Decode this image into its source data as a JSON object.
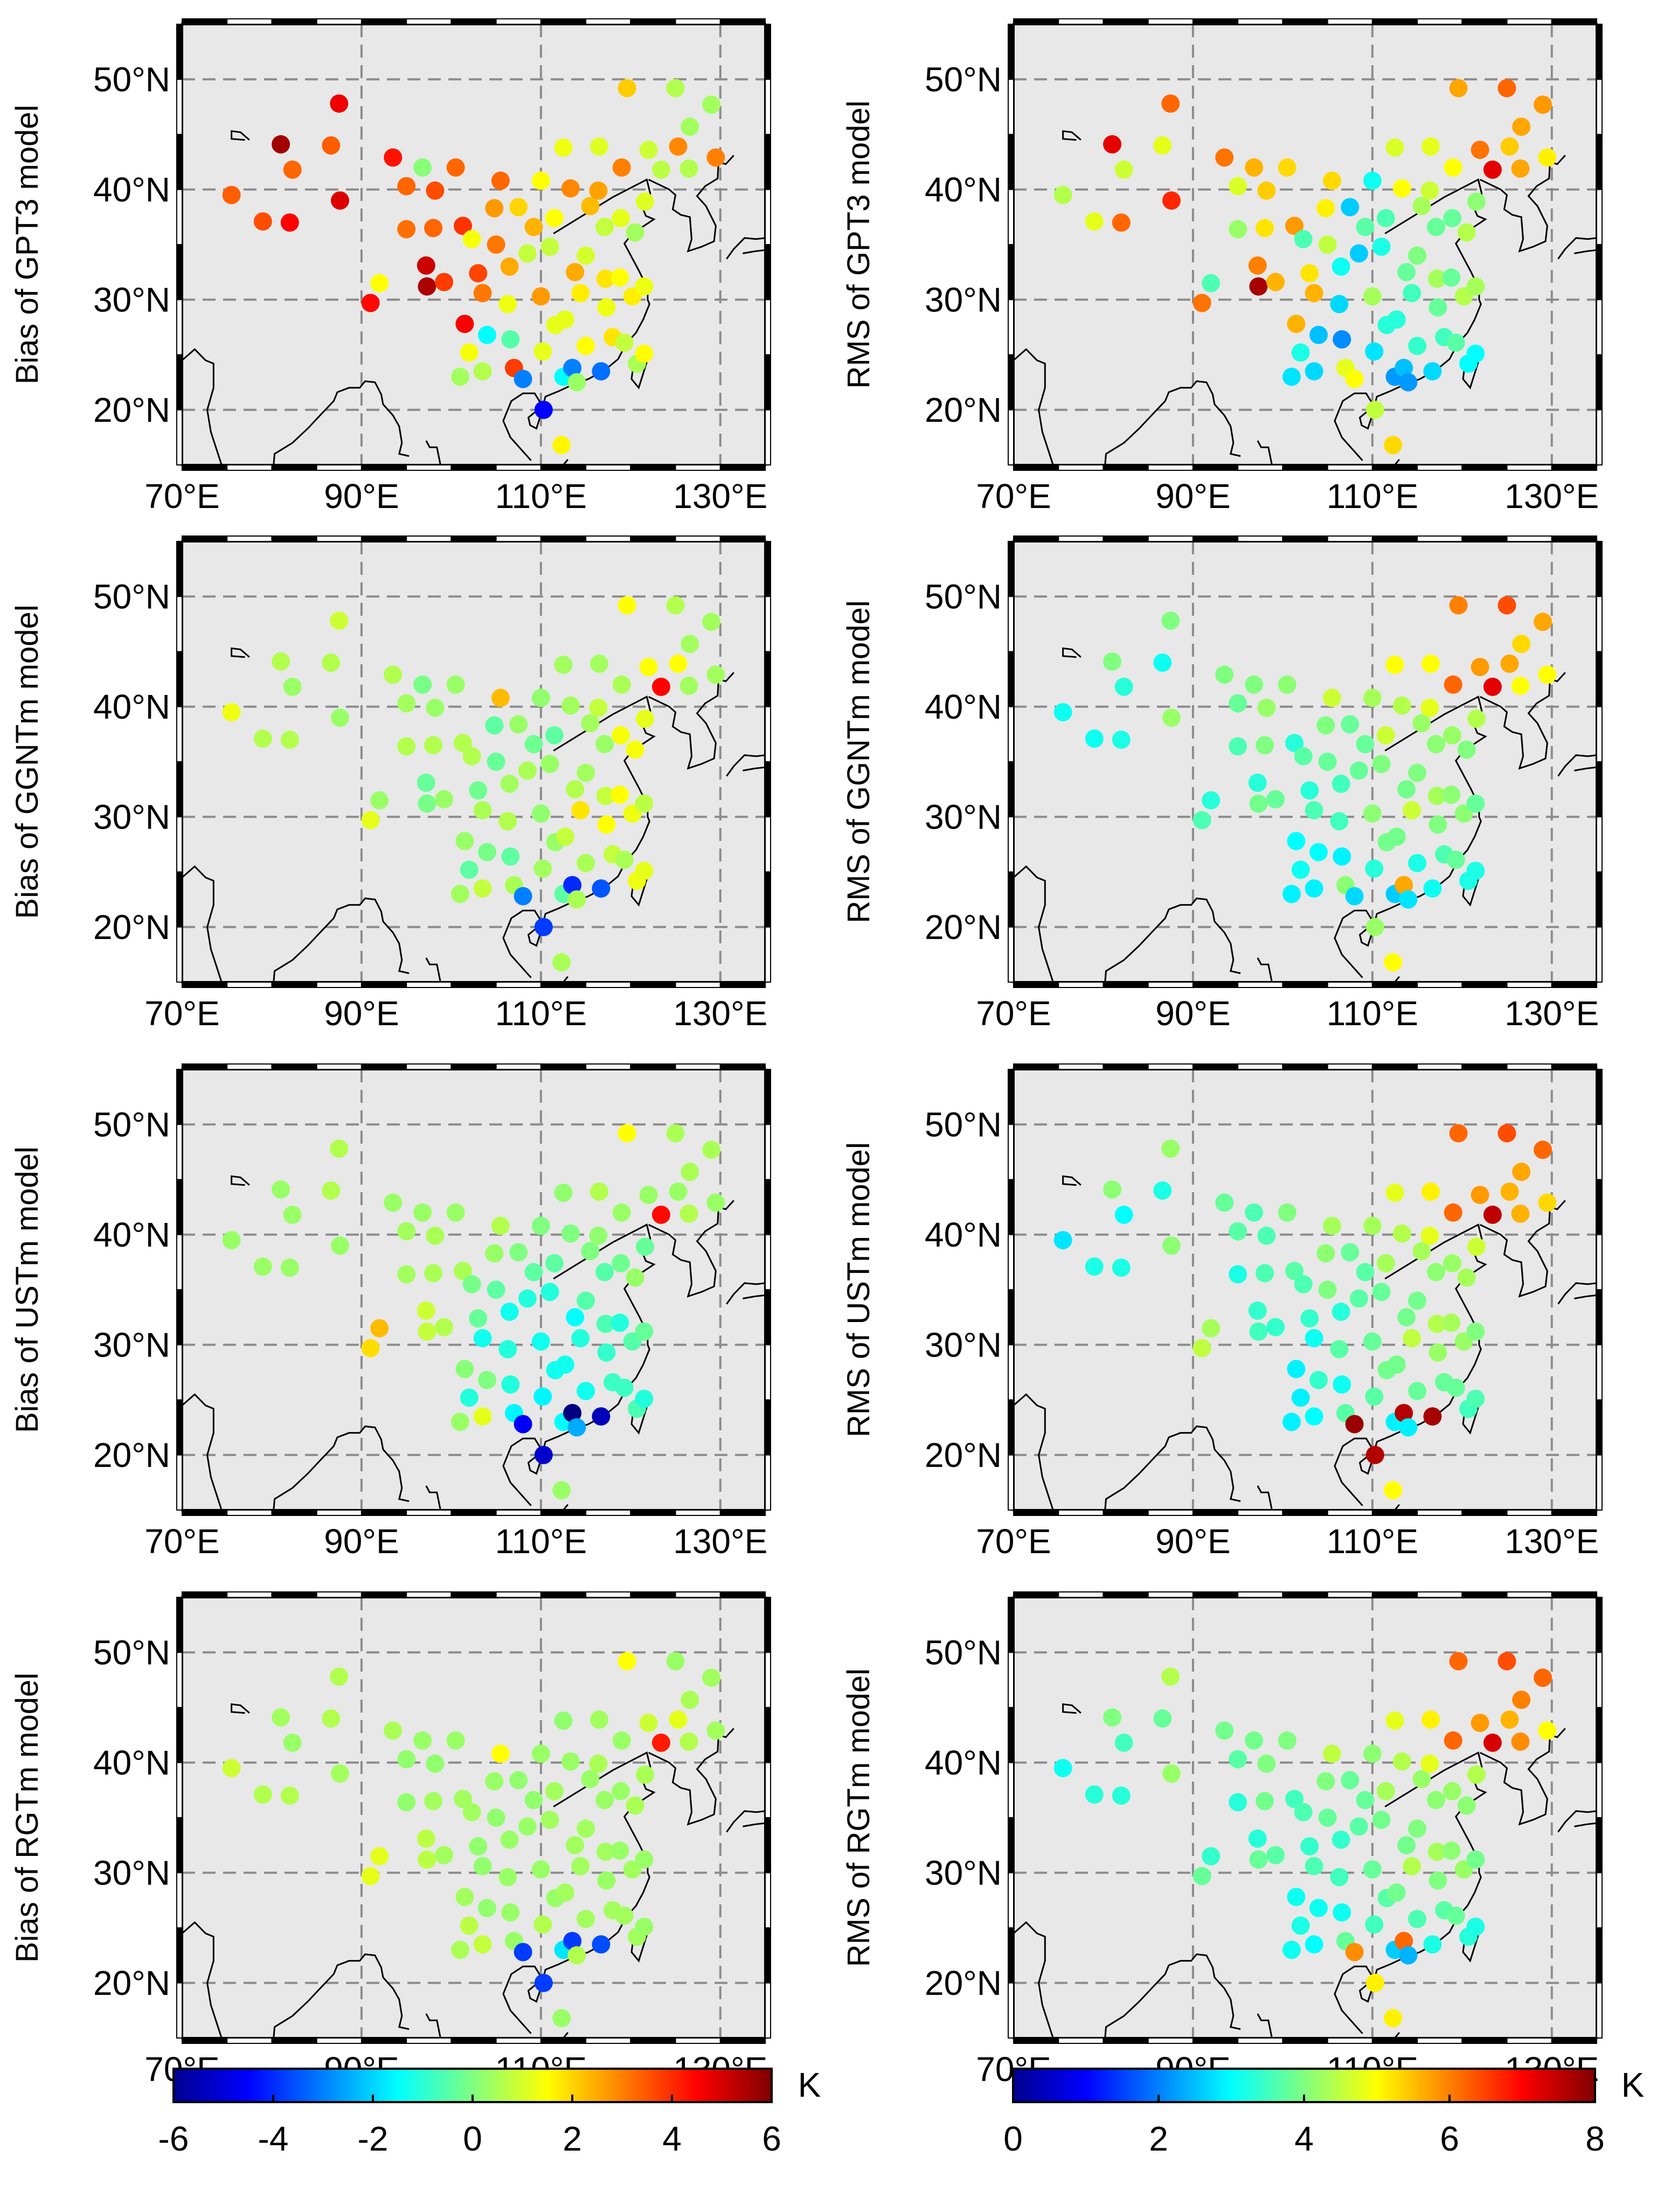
{
  "chart_data": {
    "type": "scatter",
    "map_extent": {
      "lon": [
        70,
        135
      ],
      "lat": [
        15,
        55
      ]
    },
    "lon_ticks": [
      70,
      90,
      110,
      130
    ],
    "lat_ticks": [
      20,
      30,
      40,
      50
    ],
    "lon_tick_labels": [
      "70°E",
      "90°E",
      "110°E",
      "130°E"
    ],
    "lat_tick_labels": [
      "20°N",
      "30°N",
      "40°N",
      "50°N"
    ],
    "grid": true,
    "colormap": "jet",
    "stations": [
      [
        75.5,
        39.5
      ],
      [
        79,
        37.1
      ],
      [
        81,
        44.1
      ],
      [
        82,
        37
      ],
      [
        82.3,
        41.8
      ],
      [
        86.6,
        44
      ],
      [
        87.5,
        47.8
      ],
      [
        87.6,
        39
      ],
      [
        91,
        29.7
      ],
      [
        92,
        31.5
      ],
      [
        93.5,
        42.9
      ],
      [
        95,
        40.3
      ],
      [
        95,
        36.4
      ],
      [
        96.8,
        42
      ],
      [
        97.2,
        33.1
      ],
      [
        97.3,
        31.2
      ],
      [
        98,
        36.5
      ],
      [
        98.2,
        39.9
      ],
      [
        99.2,
        31.6
      ],
      [
        100.5,
        42
      ],
      [
        101.3,
        36.7
      ],
      [
        101.5,
        27.8
      ],
      [
        102,
        25.2
      ],
      [
        101,
        23
      ],
      [
        102.3,
        35.5
      ],
      [
        103,
        32.4
      ],
      [
        103.5,
        30.6
      ],
      [
        103.5,
        23.5
      ],
      [
        104,
        26.8
      ],
      [
        104.8,
        38.3
      ],
      [
        105,
        35
      ],
      [
        105.5,
        40.8
      ],
      [
        106.3,
        29.6
      ],
      [
        106.5,
        33
      ],
      [
        106.6,
        26.4
      ],
      [
        107,
        23.8
      ],
      [
        107.5,
        38.4
      ],
      [
        108,
        22.8
      ],
      [
        108.5,
        34.2
      ],
      [
        109.2,
        36.6
      ],
      [
        110,
        40.8
      ],
      [
        110,
        30.3
      ],
      [
        110.2,
        25.3
      ],
      [
        110.3,
        20
      ],
      [
        111,
        34.8
      ],
      [
        111.6,
        27.7
      ],
      [
        111.5,
        37.4
      ],
      [
        112.5,
        43.8
      ],
      [
        112.5,
        23
      ],
      [
        112.7,
        28.2
      ],
      [
        113.3,
        40.1
      ],
      [
        113.8,
        32.5
      ],
      [
        113.5,
        23.8
      ],
      [
        114,
        22.5
      ],
      [
        114.4,
        30.6
      ],
      [
        115,
        25.8
      ],
      [
        115,
        34
      ],
      [
        115.5,
        38.5
      ],
      [
        116.4,
        39.9
      ],
      [
        116.5,
        43.9
      ],
      [
        116.7,
        23.5
      ],
      [
        117.1,
        36.6
      ],
      [
        117.2,
        31.9
      ],
      [
        117.3,
        29.3
      ],
      [
        118,
        26.6
      ],
      [
        118.8,
        32
      ],
      [
        118.9,
        37.4
      ],
      [
        119,
        42
      ],
      [
        119.3,
        26.1
      ],
      [
        119.6,
        49.2
      ],
      [
        120.2,
        30.3
      ],
      [
        120.5,
        36.1
      ],
      [
        120.7,
        24.2
      ],
      [
        121.5,
        25.1
      ],
      [
        121.5,
        31.2
      ],
      [
        121.6,
        38.9
      ],
      [
        122,
        43.6
      ],
      [
        123.4,
        41.8
      ],
      [
        125.3,
        43.9
      ],
      [
        125,
        49.2
      ],
      [
        126.6,
        45.7
      ],
      [
        126.5,
        41.9
      ],
      [
        129,
        47.7
      ],
      [
        129.5,
        42.9
      ],
      [
        112.3,
        16.8
      ]
    ],
    "maps": [
      {
        "ylabel": "Bias of GPT3 model",
        "colorbar": 0,
        "values": [
          3.4,
          3.6,
          5.6,
          4.5,
          3.3,
          3.4,
          4.7,
          4.9,
          4.4,
          1.5,
          4.3,
          3.3,
          3.2,
          0.1,
          5.1,
          5.5,
          3.3,
          3.6,
          3.8,
          3.3,
          3.9,
          4.6,
          1.4,
          0.4,
          1.4,
          3.7,
          3.1,
          0.6,
          -1.5,
          2.7,
          3.1,
          3.3,
          1.3,
          2.5,
          -0.5,
          3.8,
          2,
          -3,
          0.8,
          2.4,
          1.5,
          2.7,
          1.2,
          -4.5,
          0.8,
          1.2,
          1.5,
          1.3,
          -1.5,
          1.2,
          2.9,
          2.5,
          -3,
          0.3,
          1.7,
          1.5,
          1,
          2.3,
          2.6,
          1.1,
          -3.2,
          0.8,
          1.8,
          1.3,
          1.8,
          1.5,
          1.2,
          3,
          0.8,
          2.1,
          1.7,
          0.4,
          0.5,
          1.5,
          1.3,
          1.1,
          0.9,
          0.7,
          2.9,
          0.6,
          0.4,
          0.6,
          0.4,
          3,
          1.6,
          2.9,
          -4.3
        ]
      },
      {
        "ylabel": "RMS of GPT3 model",
        "colorbar": 1,
        "values": [
          4.4,
          4.8,
          7.2,
          6.2,
          4.6,
          4.8,
          6.2,
          6.7,
          6.1,
          3.6,
          6.1,
          4.7,
          4.2,
          5.6,
          6,
          7.7,
          5.2,
          5.4,
          5.6,
          5.3,
          5.8,
          5.6,
          3.2,
          2.8,
          3.6,
          5.2,
          5.6,
          2.7,
          2.5,
          5.1,
          4.5,
          5.3,
          2.7,
          3.1,
          2.1,
          4.8,
          2.6,
          5,
          2.6,
          3.7,
          3.1,
          4.3,
          2.8,
          4.5,
          3.2,
          3.3,
          3.6,
          4.7,
          2.2,
          3.3,
          5,
          3.8,
          2.5,
          2.2,
          3.5,
          3.4,
          4,
          4.3,
          4.6,
          4.8,
          2.7,
          3.8,
          4.3,
          3.8,
          3.5,
          3.8,
          3.8,
          5,
          3.7,
          5.7,
          4.4,
          4.4,
          3,
          3,
          4.3,
          4.1,
          6.1,
          7.2,
          5.4,
          6.2,
          5.7,
          5.7,
          5.8,
          5.1,
          5.3,
          6.2,
          5.7
        ]
      },
      {
        "ylabel": "Bias of GGNTm model",
        "colorbar": 0,
        "values": [
          1.3,
          0.6,
          0.6,
          0.6,
          0.3,
          0.6,
          0.9,
          0.3,
          1.2,
          0.3,
          0.6,
          0.4,
          0.6,
          -0.1,
          -0.3,
          -0.1,
          0.6,
          0.3,
          0.3,
          0.3,
          0.6,
          0.3,
          -0.4,
          0.4,
          0.6,
          -0.2,
          0.5,
          0.8,
          -0.1,
          -0.4,
          -0.3,
          2.3,
          0.6,
          0.4,
          -0.4,
          0.5,
          0.3,
          -3,
          0.5,
          -0.2,
          0.2,
          0.2,
          0.4,
          -3.8,
          0.3,
          0.3,
          -0.4,
          0.4,
          -0.4,
          0.8,
          0.4,
          0.6,
          -4,
          0.5,
          1.8,
          0.5,
          0.4,
          0.4,
          0.8,
          0.4,
          -3.5,
          0.3,
          0.8,
          1.5,
          0.8,
          1.5,
          1.4,
          0.5,
          0.5,
          1.5,
          1.3,
          1.4,
          1.3,
          1.2,
          0.7,
          1.2,
          1.5,
          4.5,
          1.5,
          0.6,
          0.4,
          0.4,
          0.4,
          0.4,
          0.5,
          0.6,
          -2.3
        ]
      },
      {
        "ylabel": "RMS of GGNTm model",
        "colorbar": 1,
        "values": [
          3.1,
          3.1,
          4,
          3.2,
          3.3,
          3.1,
          4,
          4.2,
          3.6,
          3.3,
          4,
          3.8,
          3.6,
          4,
          3.3,
          3.9,
          4,
          4.2,
          3.8,
          4.1,
          3.3,
          3,
          3.1,
          2.9,
          3.7,
          3.3,
          3.6,
          2.9,
          3,
          4,
          3.8,
          4.6,
          3.5,
          3.5,
          2.9,
          4.1,
          3.8,
          2.7,
          3.8,
          3.8,
          4.3,
          4.1,
          3.3,
          4.2,
          4,
          3.9,
          4.6,
          5,
          2.6,
          3.9,
          4.4,
          3.9,
          5.7,
          2.8,
          4.6,
          3.2,
          4,
          4.2,
          4.8,
          5,
          3.1,
          4.1,
          4.3,
          4,
          3.6,
          4.1,
          4.2,
          6.2,
          3.8,
          6,
          4.1,
          4,
          3.2,
          3.2,
          3.8,
          4.4,
          5.8,
          7.2,
          5.7,
          6.4,
          5.3,
          5,
          5.7,
          5,
          5,
          6.2,
          5.2
        ]
      },
      {
        "ylabel": "Bias of USTm model",
        "colorbar": 0,
        "values": [
          0.3,
          0.3,
          0.3,
          0.3,
          0.3,
          0.6,
          0.6,
          0.3,
          1.9,
          2.3,
          0.3,
          0.4,
          0.4,
          0.3,
          0.9,
          0.8,
          0.5,
          0.5,
          0.6,
          0.3,
          0.5,
          0.1,
          -1.1,
          0.3,
          -0.1,
          -0.3,
          -1.3,
          1.2,
          0,
          0.3,
          -0.4,
          0.6,
          -1.1,
          -1.3,
          -1.1,
          -1.6,
          0,
          -4.6,
          -1.1,
          -0.4,
          0,
          -1.3,
          -1.6,
          -5.1,
          -1.1,
          -1.3,
          -0.4,
          0.2,
          -1.5,
          -1.3,
          0,
          -1.5,
          -6.6,
          -2.5,
          -1.1,
          -1.3,
          -0.5,
          0,
          0.2,
          0.6,
          -5.3,
          -0.5,
          -0.6,
          -0.9,
          -0.8,
          -1.1,
          -0.2,
          0.3,
          -0.8,
          1.5,
          -0.5,
          0.3,
          -0.6,
          -1.1,
          -0.3,
          -0.3,
          0.3,
          4.4,
          0.3,
          0.5,
          0.5,
          0.6,
          0.5,
          0.3,
          0.3,
          0.6,
          -4.7
        ]
      },
      {
        "ylabel": "RMS of USTm model",
        "colorbar": 1,
        "values": [
          2.8,
          3.2,
          4.1,
          3.2,
          3,
          3.2,
          4.2,
          4.1,
          4.5,
          4.3,
          3.8,
          3.7,
          3.2,
          3.6,
          3.4,
          3.5,
          3.6,
          3.6,
          3.4,
          4,
          3.7,
          2.9,
          2.9,
          2.9,
          3.6,
          3.4,
          3.1,
          3,
          3.4,
          4.1,
          4,
          4.3,
          3.7,
          3.3,
          3.1,
          3.7,
          3.8,
          7.8,
          3.7,
          3.7,
          4.3,
          3.8,
          3.7,
          7.6,
          3.8,
          3.9,
          4.3,
          4.8,
          2.9,
          3.9,
          4.4,
          3.9,
          7.6,
          2.9,
          4.5,
          3.8,
          3.9,
          4.3,
          4.8,
          5.1,
          7.7,
          4.1,
          4.4,
          4.2,
          3.8,
          4.3,
          4.2,
          6.2,
          3.8,
          6.2,
          4.2,
          4.3,
          3.5,
          3.6,
          4,
          4.6,
          5.8,
          7.5,
          5.6,
          6.4,
          5.7,
          5.6,
          6.2,
          5.3,
          5,
          6.1,
          7.7
        ]
      },
      {
        "ylabel": "Bias of RGTm model",
        "colorbar": 0,
        "values": [
          0.9,
          0.6,
          0.4,
          0.6,
          0.3,
          0.6,
          0.6,
          0.4,
          1.2,
          1.2,
          0.5,
          0.2,
          0.2,
          0.3,
          0.7,
          0.7,
          0.4,
          0.2,
          0.4,
          0.3,
          0.4,
          0.4,
          0.7,
          0.5,
          0.4,
          0.2,
          0.2,
          0.8,
          0.2,
          0.3,
          0.2,
          1.5,
          0.3,
          0.3,
          0.3,
          0.3,
          0.2,
          -3.8,
          0.3,
          0.2,
          0.3,
          0.3,
          0.6,
          -3.8,
          0.4,
          0.3,
          0.4,
          0.2,
          -1.8,
          0.4,
          0.3,
          0.4,
          -3.8,
          0.6,
          0.4,
          0.4,
          0.4,
          0.3,
          0.5,
          0.4,
          -3.6,
          0.3,
          0.4,
          0.3,
          0.4,
          0.3,
          0.3,
          0.3,
          0.4,
          1.5,
          0.4,
          0.5,
          0.4,
          0.3,
          0.3,
          0.5,
          0.9,
          4.2,
          1.2,
          0.3,
          0.5,
          0.6,
          0.4,
          0.4,
          0.3,
          0.4,
          -2.5
        ]
      },
      {
        "ylabel": "RMS of RGTm model",
        "colorbar": 1,
        "values": [
          3.1,
          3.3,
          4,
          3.3,
          3.5,
          3.8,
          4.4,
          4.2,
          3.8,
          3.4,
          3.9,
          3.7,
          3.3,
          3.9,
          3.3,
          3.8,
          3.9,
          4,
          3.7,
          4,
          3.5,
          3.1,
          3.2,
          3.1,
          3.6,
          3.4,
          3.6,
          3,
          3.1,
          4,
          3.8,
          4.5,
          3.5,
          3.4,
          3.1,
          3.8,
          3.8,
          5.9,
          3.7,
          3.8,
          4.1,
          3.8,
          3.5,
          5.1,
          3.9,
          3.7,
          4.3,
          4.8,
          2.6,
          3.9,
          4.4,
          3.9,
          6.2,
          2.4,
          4.4,
          3.6,
          4,
          4.2,
          4.8,
          5.1,
          3.2,
          4.1,
          4.3,
          4,
          3.7,
          4.1,
          4.2,
          6.2,
          3.8,
          6.2,
          4.2,
          4.1,
          3.3,
          3.2,
          3.9,
          4.4,
          5.8,
          7.3,
          5.6,
          6.4,
          6,
          5.9,
          6.2,
          5,
          5.1,
          6.2,
          5.9
        ]
      }
    ],
    "colorbars": [
      {
        "range": [
          -6,
          6
        ],
        "ticks": [
          -6,
          -4,
          -2,
          0,
          2,
          4,
          6
        ],
        "tick_labels": [
          "-6",
          "-4",
          "-2",
          "0",
          "2",
          "4",
          "6"
        ],
        "unit": "K"
      },
      {
        "range": [
          0,
          8
        ],
        "ticks": [
          0,
          2,
          4,
          6,
          8
        ],
        "tick_labels": [
          "0",
          "2",
          "4",
          "6",
          "8"
        ],
        "unit": "K"
      }
    ]
  }
}
